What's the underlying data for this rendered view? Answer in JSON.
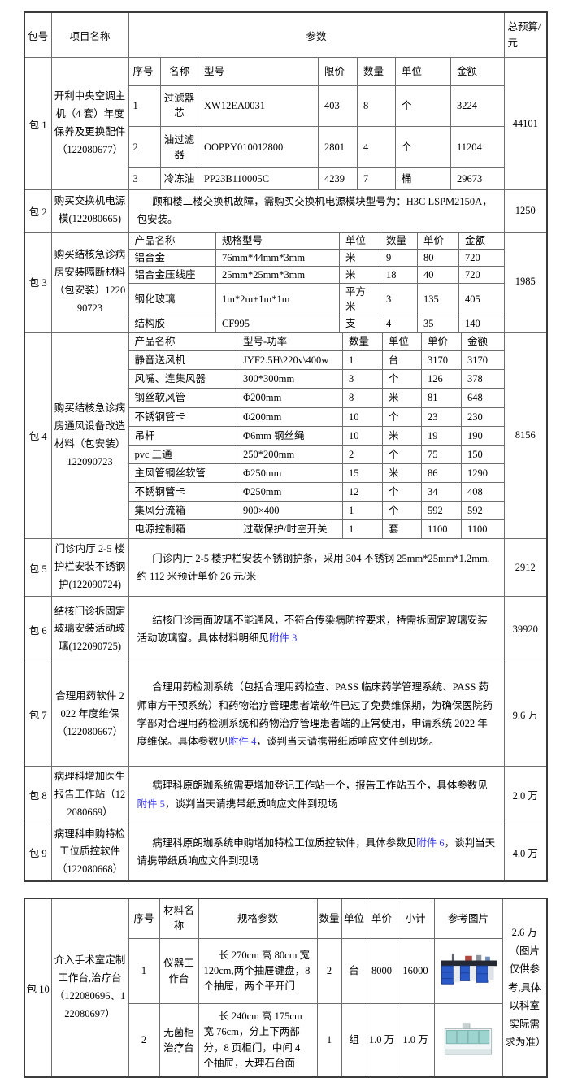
{
  "colors": {
    "link": "#3a3af2",
    "inner_border": "#6e6e6e",
    "outer_border": "#3c3c3c",
    "workbench_blue": "#2a59c8",
    "cabinet_teal": "#9ed4d0"
  },
  "table1": {
    "headers": {
      "package": "包号",
      "project": "项目名称",
      "params": "参数",
      "budget": "总预算/元"
    },
    "pkg1": {
      "no": "包 1",
      "name": "开利中央空调主机（4 套）年度保养及更换配件（122080677）",
      "budget": "44101",
      "rows": [
        [
          "序号",
          "名称",
          "型号",
          "限价",
          "数量",
          "单位",
          "金额"
        ],
        [
          "1",
          "过滤器芯",
          "XW12EA0031",
          "403",
          "8",
          "个",
          "3224"
        ],
        [
          "2",
          "油过滤器",
          "OOPPY010012800",
          "2801",
          "4",
          "个",
          "11204"
        ],
        [
          "3",
          "冷冻油",
          "PP23B110005C",
          "4239",
          "7",
          "桶",
          "29673"
        ]
      ]
    },
    "pkg2": {
      "no": "包 2",
      "name": "购买交换机电源模(122080665)",
      "budget": "1250",
      "text": "顾和楼二楼交换机故障，需购买交换机电源模块型号为：H3C LSPM2150A，包安装。"
    },
    "pkg3": {
      "no": "包 3",
      "name": "购买结核急诊病房安装隔断材料（包安装）122090723",
      "budget": "1985",
      "rows": [
        [
          "产品名称",
          "规格型号",
          "单位",
          "数量",
          "单价",
          "金额"
        ],
        [
          "铝合金",
          "76mm*44mm*3mm",
          "米",
          "9",
          "80",
          "720"
        ],
        [
          "铝合金压线座",
          "25mm*25mm*3mm",
          "米",
          "18",
          "40",
          "720"
        ],
        [
          "钢化玻璃",
          "1m*2m+1m*1m",
          "平方米",
          "3",
          "135",
          "405"
        ],
        [
          "结构胶",
          "CF995",
          "支",
          "4",
          "35",
          "140"
        ]
      ]
    },
    "pkg4": {
      "no": "包 4",
      "name": "购买结核急诊病房通风设备改造材料（包安装）122090723",
      "budget": "8156",
      "rows": [
        [
          "产品名称",
          "型号-功率",
          "数量",
          "单位",
          "单价",
          "金额"
        ],
        [
          "静音送风机",
          "JYF2.5H\\220v\\400w",
          "1",
          "台",
          "3170",
          "3170"
        ],
        [
          "风嘴、连集风器",
          "300*300mm",
          "3",
          "个",
          "126",
          "378"
        ],
        [
          "钢丝软风管",
          "Φ200mm",
          "8",
          "米",
          "81",
          "648"
        ],
        [
          "不锈钢管卡",
          "Φ200mm",
          "10",
          "个",
          "23",
          "230"
        ],
        [
          "吊杆",
          "Φ6mm 钢丝绳",
          "10",
          "米",
          "19",
          "190"
        ],
        [
          "pvc 三通",
          "250*200mm",
          "2",
          "个",
          "75",
          "150"
        ],
        [
          "主风管钢丝软管",
          "Φ250mm",
          "15",
          "米",
          "86",
          "1290"
        ],
        [
          "不锈钢管卡",
          "Φ250mm",
          "12",
          "个",
          "34",
          "408"
        ],
        [
          "集风分流箱",
          "900×400",
          "1",
          "个",
          "592",
          "592"
        ],
        [
          "电源控制箱",
          "过载保护/时空开关",
          "1",
          "套",
          "1100",
          "1100"
        ]
      ]
    },
    "pkg5": {
      "no": "包 5",
      "name": "门诊内厅 2-5 楼护栏安装不锈钢护(122090724)",
      "budget": "2912",
      "text": "门诊内厅 2-5 楼护栏安装不锈钢护条，采用 304 不锈钢 25mm*25mm*1.2mm,约 112 米预计单价 26 元/米"
    },
    "pkg6": {
      "no": "包 6",
      "name": "结核门诊拆固定玻璃安装活动玻璃(122090725)",
      "budget": "39920",
      "segments": [
        {
          "t": "结核门诊南面玻璃不能通风，不符合传染病防控要求，特需拆固定玻璃安装活动玻璃窗。具体材料明细见"
        },
        {
          "t": "附件 3",
          "link": true
        }
      ]
    },
    "pkg7": {
      "no": "包 7",
      "name": "合理用药软件 2022 年度维保（122080667）",
      "budget": "9.6 万",
      "segments": [
        {
          "t": "合理用药检测系统（包括合理用药检查、PASS 临床药学管理系统、PASS 药师审方干预系统）和药物治疗管理患者端软件已过了免费维保期，为确保医院药学部对合理用药检测系统和药物治疗管理患者端的正常使用，申请系统 2022 年度维保。具体参数见"
        },
        {
          "t": "附件 4",
          "link": true
        },
        {
          "t": "，谈判当天请携带纸质响应文件到现场。"
        }
      ]
    },
    "pkg8": {
      "no": "包 8",
      "name": "病理科增加医生报告工作站（122080669）",
      "budget": "2.0 万",
      "segments": [
        {
          "t": "病理科原朗珈系统需要增加登记工作站一个，报告工作站五个，具体参数见"
        },
        {
          "t": "附件 5",
          "link": true
        },
        {
          "t": "，谈判当天请携带纸质响应文件到现场"
        }
      ]
    },
    "pkg9": {
      "no": "包 9",
      "name": "病理科申购特检工位质控软件（122080668）",
      "budget": "4.0 万",
      "segments": [
        {
          "t": "病理科原朗珈系统申购增加特检工位质控软件，具体参数见"
        },
        {
          "t": "附件 6",
          "link": true
        },
        {
          "t": "，谈判当天请携带纸质响应文件到现场"
        }
      ]
    }
  },
  "table2": {
    "pkg10": {
      "no": "包 10",
      "name": "介入手术室定制工作台,治疗台（122080696、122080697）",
      "budget": "2.6 万（图片仅供参考,具体以科室实际需求为准）",
      "headers": [
        "序号",
        "材料名称",
        "规格参数",
        "数量",
        "单位",
        "单价",
        "小计",
        "参考图片"
      ],
      "rows": [
        {
          "seq": "1",
          "material": "仪器工作台",
          "spec": "长 270cm 高 80cm 宽 120cm,两个抽屉键盘，8 个抽屉，两个平开门",
          "qty": "2",
          "unit": "台",
          "price": "8000",
          "subtotal": "16000",
          "image": "lab-workbench-image"
        },
        {
          "seq": "2",
          "material": "无菌柜治疗台",
          "spec": "长 240cm 高 175cm 宽 76cm，分上下两部分，8 页柜门，中间 4 个抽屉，大理石台面",
          "qty": "1",
          "unit": "组",
          "price": "1.0 万",
          "subtotal": "1.0 万",
          "image": "sterile-cabinet-image"
        }
      ]
    }
  }
}
